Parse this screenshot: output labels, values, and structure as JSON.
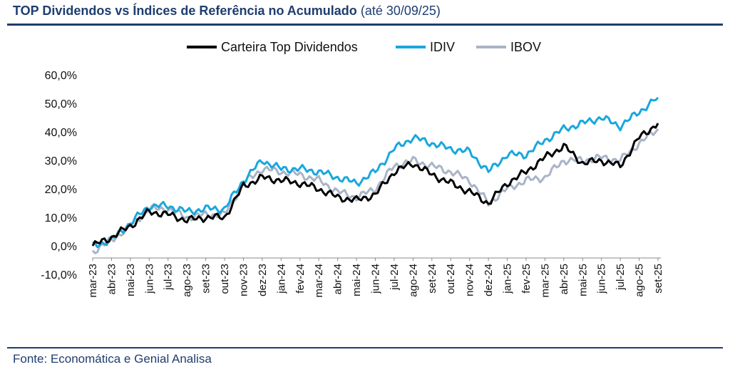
{
  "header": {
    "title_bold": "TOP Dividendos vs Índices de Referência no Acumulado",
    "title_rest": "(até 30/09/25)"
  },
  "footer": {
    "source": "Fonte: Economática e Genial Analisa"
  },
  "chart_data": {
    "type": "line",
    "title": "TOP Dividendos vs Índices de Referência no Acumulado (até 30/09/25)",
    "xlabel": "",
    "ylabel": "",
    "ylim": [
      -10,
      60
    ],
    "y_ticks": [
      -10,
      0,
      10,
      20,
      30,
      40,
      50,
      60
    ],
    "y_tick_labels": [
      "-10,0%",
      "0,0%",
      "10,0%",
      "20,0%",
      "30,0%",
      "40,0%",
      "50,0%",
      "60,0%"
    ],
    "categories": [
      "mar-23",
      "abr-23",
      "mai-23",
      "jun-23",
      "jul-23",
      "ago-23",
      "set-23",
      "out-23",
      "nov-23",
      "dez-23",
      "jan-24",
      "fev-24",
      "mar-24",
      "abr-24",
      "mai-24",
      "jun-24",
      "jul-24",
      "ago-24",
      "set-24",
      "out-24",
      "nov-24",
      "dez-24",
      "jan-25",
      "fev-25",
      "mar-25",
      "abr-25",
      "mai-25",
      "jun-25",
      "jul-25",
      "ago-25",
      "set-25"
    ],
    "legend_position": "top",
    "series": [
      {
        "name": "Carteira Top Dividendos",
        "color": "#000000",
        "values": [
          0,
          3,
          7,
          12,
          11,
          9,
          10,
          10,
          21,
          24,
          23,
          22,
          20,
          17,
          16,
          18,
          26,
          29,
          25,
          22,
          19,
          15,
          22,
          26,
          31,
          35,
          29,
          30,
          28,
          38,
          43
        ]
      },
      {
        "name": "IDIV",
        "color": "#1aa7dd",
        "values": [
          0,
          2,
          8,
          14,
          14,
          12,
          13,
          13,
          23,
          30,
          27,
          27,
          26,
          24,
          22,
          26,
          34,
          38,
          36,
          34,
          33,
          26,
          32,
          32,
          37,
          41,
          43,
          45,
          42,
          47,
          52
        ]
      },
      {
        "name": "IBOV",
        "color": "#a9b4c6",
        "values": [
          -2,
          2,
          7,
          13,
          13,
          10,
          11,
          11,
          22,
          27,
          26,
          25,
          23,
          19,
          17,
          20,
          28,
          30,
          28,
          26,
          23,
          15,
          20,
          23,
          24,
          30,
          30,
          31,
          30,
          36,
          41
        ]
      }
    ]
  }
}
